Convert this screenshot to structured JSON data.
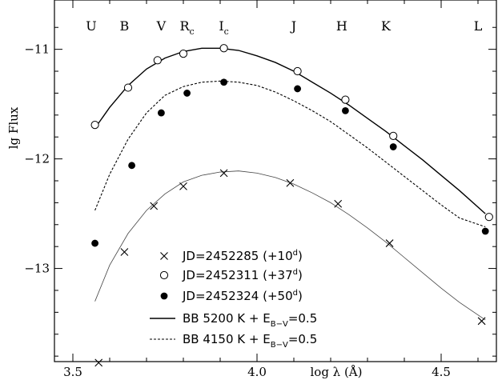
{
  "chart_data": {
    "type": "scatter",
    "xlabel": "log λ (Å)",
    "ylabel": "lg Flux",
    "xlim": [
      3.45,
      4.65
    ],
    "ylim": [
      -13.85,
      -10.55
    ],
    "x_ticks": [
      {
        "value": 3.5,
        "label": "3.5"
      },
      {
        "value": 4.0,
        "label": "4.0"
      },
      {
        "value": 4.5,
        "label": "4.5"
      }
    ],
    "y_ticks": [
      {
        "value": -11,
        "label": "−11"
      },
      {
        "value": -12,
        "label": "−12"
      },
      {
        "value": -13,
        "label": "−13"
      }
    ],
    "bands": [
      {
        "x": 3.55,
        "label": "U",
        "sub": ""
      },
      {
        "x": 3.64,
        "label": "B",
        "sub": ""
      },
      {
        "x": 3.74,
        "label": "V",
        "sub": ""
      },
      {
        "x": 3.81,
        "label": "R",
        "sub": "c"
      },
      {
        "x": 3.91,
        "label": "I",
        "sub": "c"
      },
      {
        "x": 4.1,
        "label": "J",
        "sub": ""
      },
      {
        "x": 4.23,
        "label": "H",
        "sub": ""
      },
      {
        "x": 4.35,
        "label": "K",
        "sub": ""
      },
      {
        "x": 4.6,
        "label": "L",
        "sub": ""
      }
    ],
    "series": [
      {
        "name": "JD=2452285 (+10",
        "sup": "d",
        "suffix": ")",
        "marker": "cross",
        "x": [
          3.57,
          3.64,
          3.72,
          3.8,
          3.91,
          4.09,
          4.22,
          4.36,
          4.61
        ],
        "y": [
          -13.86,
          -12.85,
          -12.43,
          -12.25,
          -12.13,
          -12.22,
          -12.41,
          -12.77,
          -13.48
        ]
      },
      {
        "name": "JD=2452311 (+37",
        "sup": "d",
        "suffix": ")",
        "marker": "open-circle",
        "x": [
          3.56,
          3.65,
          3.73,
          3.8,
          3.91,
          4.11,
          4.24,
          4.37,
          4.63
        ],
        "y": [
          -11.69,
          -11.35,
          -11.1,
          -11.04,
          -10.99,
          -11.2,
          -11.46,
          -11.79,
          -12.53
        ]
      },
      {
        "name": "JD=2452324 (+50",
        "sup": "d",
        "suffix": ")",
        "marker": "filled-circle",
        "x": [
          3.56,
          3.66,
          3.74,
          3.81,
          3.91,
          4.11,
          4.24,
          4.37,
          4.62
        ],
        "y": [
          -12.77,
          -12.06,
          -11.58,
          -11.4,
          -11.3,
          -11.36,
          -11.56,
          -11.89,
          -12.66
        ]
      }
    ],
    "curves": [
      {
        "name": "BB 5200 K + E",
        "sub": "B−V",
        "suffix": "=0.5",
        "style": "solid",
        "x": [
          3.56,
          3.6,
          3.65,
          3.7,
          3.75,
          3.8,
          3.85,
          3.9,
          3.95,
          4.0,
          4.05,
          4.1,
          4.15,
          4.2,
          4.25,
          4.3,
          4.35,
          4.4,
          4.45,
          4.5,
          4.55,
          4.62
        ],
        "y": [
          -11.72,
          -11.53,
          -11.33,
          -11.18,
          -11.08,
          -11.02,
          -10.99,
          -10.99,
          -11.01,
          -11.06,
          -11.12,
          -11.2,
          -11.3,
          -11.4,
          -11.51,
          -11.63,
          -11.75,
          -11.88,
          -12.01,
          -12.15,
          -12.29,
          -12.5
        ]
      },
      {
        "name": "BB 4150 K + E",
        "sub": "B−V",
        "suffix": "=0.5",
        "style": "dashed",
        "x": [
          3.56,
          3.6,
          3.65,
          3.7,
          3.75,
          3.8,
          3.85,
          3.9,
          3.95,
          4.0,
          4.05,
          4.1,
          4.15,
          4.2,
          4.25,
          4.3,
          4.35,
          4.4,
          4.45,
          4.5,
          4.55,
          4.62
        ],
        "y": [
          -12.47,
          -12.14,
          -11.82,
          -11.58,
          -11.42,
          -11.34,
          -11.3,
          -11.29,
          -11.3,
          -11.33,
          -11.39,
          -11.47,
          -11.56,
          -11.66,
          -11.78,
          -11.9,
          -12.03,
          -12.16,
          -12.29,
          -12.42,
          -12.54,
          -12.62
        ]
      },
      {
        "name": "fit-cross",
        "style": "thin",
        "x": [
          3.56,
          3.6,
          3.65,
          3.7,
          3.75,
          3.8,
          3.85,
          3.9,
          3.95,
          4.0,
          4.05,
          4.1,
          4.15,
          4.2,
          4.25,
          4.3,
          4.35,
          4.4,
          4.45,
          4.5,
          4.55,
          4.62
        ],
        "y": [
          -13.3,
          -12.97,
          -12.68,
          -12.47,
          -12.32,
          -12.21,
          -12.15,
          -12.12,
          -12.11,
          -12.13,
          -12.17,
          -12.23,
          -12.31,
          -12.4,
          -12.51,
          -12.63,
          -12.76,
          -12.9,
          -13.04,
          -13.18,
          -13.31,
          -13.47
        ]
      }
    ],
    "legend_position": "bottom-center",
    "grid": false
  }
}
